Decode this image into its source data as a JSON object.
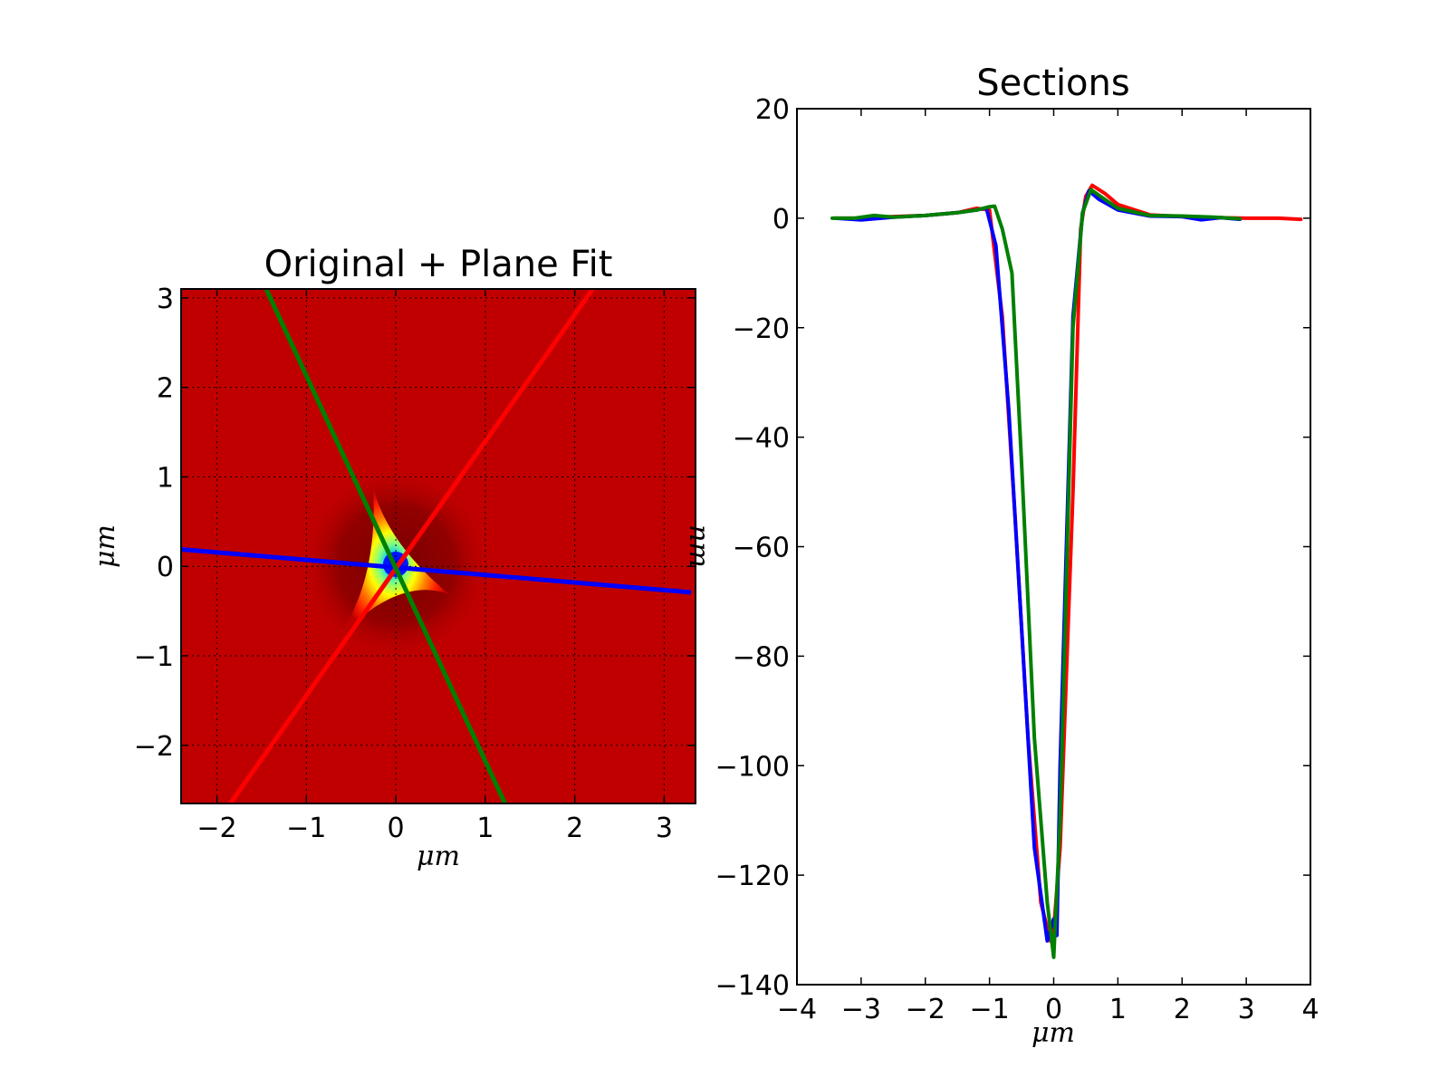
{
  "chart_data": [
    {
      "type": "heatmap",
      "title": "Original + Plane Fit",
      "xlabel": "μm",
      "ylabel": "μm",
      "xlim": [
        -2.4,
        3.35
      ],
      "ylim": [
        -2.65,
        3.1
      ],
      "xticks": [
        -2,
        -1,
        0,
        1,
        2,
        3
      ],
      "yticks": [
        -2,
        -1,
        0,
        1,
        2,
        3
      ],
      "grid": true,
      "colormap": "jet",
      "background_color": "#c00000",
      "description_of_field": "depression centered at (0, 0) with a triangular (three-lobed) shape",
      "section_lines": [
        {
          "color": "#0000ff",
          "from": [
            -2.4,
            0.19
          ],
          "to": [
            3.3,
            -0.29
          ]
        },
        {
          "color": "#ff0000",
          "from": [
            -1.85,
            -2.65
          ],
          "to": [
            2.2,
            3.1
          ]
        },
        {
          "color": "#008000",
          "from": [
            -1.45,
            3.1
          ],
          "to": [
            1.22,
            -2.65
          ]
        }
      ]
    },
    {
      "type": "line",
      "title": "Sections",
      "xlabel": "μm",
      "ylabel": "nm",
      "xlim": [
        -4,
        4
      ],
      "ylim": [
        -140,
        20
      ],
      "xticks": [
        -4,
        -3,
        -2,
        -1,
        0,
        1,
        2,
        3,
        4
      ],
      "yticks": [
        -140,
        -120,
        -100,
        -80,
        -60,
        -40,
        -20,
        0,
        20
      ],
      "grid": false,
      "series": [
        {
          "color": "#ff0000",
          "x": [
            -3.4,
            -3.0,
            -2.5,
            -2.0,
            -1.5,
            -1.2,
            -1.0,
            -0.8,
            -0.6,
            -0.4,
            -0.2,
            -0.05,
            0.0,
            0.1,
            0.3,
            0.42,
            0.5,
            0.6,
            0.8,
            1.0,
            1.5,
            2.0,
            2.5,
            3.0,
            3.5,
            3.85
          ],
          "y": [
            0,
            0,
            0.3,
            0.5,
            1.0,
            1.8,
            1.5,
            -18,
            -55,
            -95,
            -125,
            -132,
            -130,
            -115,
            -50,
            -2,
            4,
            6,
            4.5,
            2.5,
            0.6,
            0.3,
            0.1,
            0,
            0,
            -0.2
          ]
        },
        {
          "color": "#0000ff",
          "x": [
            -3.4,
            -3.0,
            -2.5,
            -2.0,
            -1.5,
            -1.2,
            -1.05,
            -0.9,
            -0.7,
            -0.5,
            -0.3,
            -0.1,
            0.0,
            0.05,
            0.1,
            0.3,
            0.45,
            0.55,
            0.7,
            1.0,
            1.5,
            2.0,
            2.3,
            2.6,
            2.9
          ],
          "y": [
            0,
            -0.3,
            0.2,
            0.5,
            1.0,
            1.5,
            1.9,
            -5,
            -35,
            -75,
            -115,
            -132,
            -128,
            -131,
            -100,
            -18,
            1,
            5,
            3.5,
            1.5,
            0.4,
            0.3,
            -0.3,
            0.1,
            -0.2
          ]
        },
        {
          "color": "#008000",
          "x": [
            -3.45,
            -3.1,
            -2.8,
            -2.5,
            -2.0,
            -1.5,
            -1.2,
            -1.0,
            -0.92,
            -0.8,
            -0.65,
            -0.5,
            -0.3,
            -0.1,
            0.0,
            0.1,
            0.3,
            0.45,
            0.58,
            0.75,
            1.0,
            1.5,
            2.0,
            2.5,
            2.9
          ],
          "y": [
            0,
            0,
            0.5,
            0.2,
            0.5,
            1.0,
            1.5,
            2.1,
            2.2,
            -2,
            -10,
            -45,
            -95,
            -125,
            -135,
            -110,
            -20,
            1,
            5.2,
            3.8,
            1.8,
            0.5,
            0.4,
            0.2,
            -0.1
          ]
        }
      ]
    }
  ]
}
